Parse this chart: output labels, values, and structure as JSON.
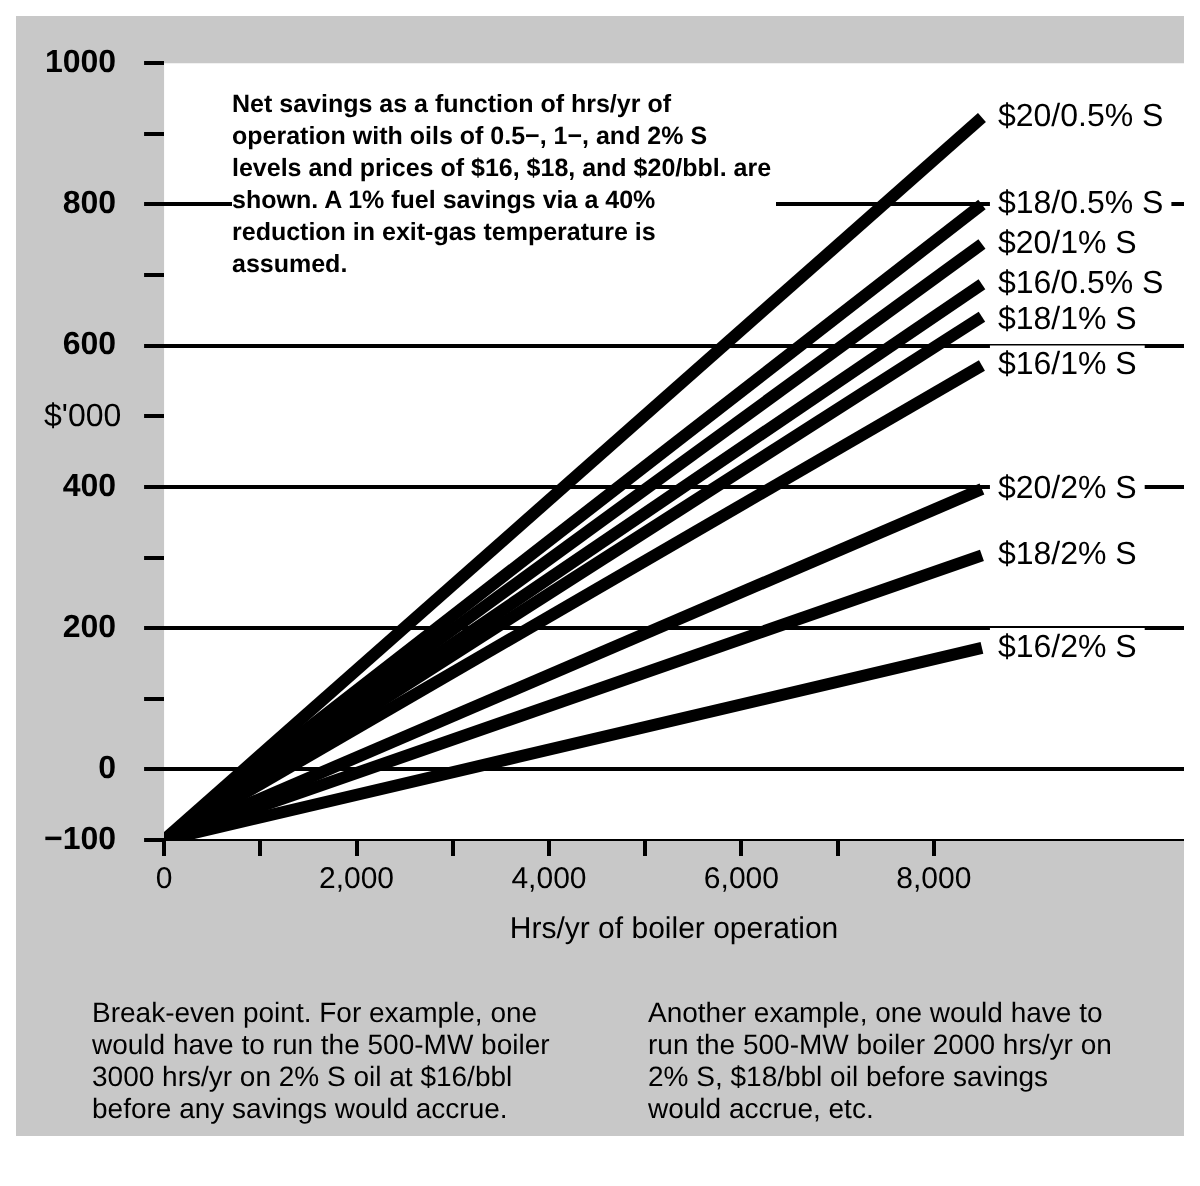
{
  "chart_data": {
    "type": "line",
    "ylabel": "$'000",
    "xlabel": "Hrs/yr of boiler operation",
    "x": [
      0,
      8500
    ],
    "series": [
      {
        "name": "$20/0.5% S",
        "color": "#000000",
        "values": [
          -100,
          923
        ]
      },
      {
        "name": "$18/0.5% S",
        "color": "#000000",
        "values": [
          -100,
          800
        ]
      },
      {
        "name": "$20/1% S",
        "color": "#000000",
        "values": [
          -100,
          744
        ]
      },
      {
        "name": "$16/0.5% S",
        "color": "#000000",
        "values": [
          -100,
          687
        ]
      },
      {
        "name": "$18/1% S",
        "color": "#000000",
        "values": [
          -100,
          641
        ]
      },
      {
        "name": "$16/1% S",
        "color": "#000000",
        "values": [
          -100,
          572
        ]
      },
      {
        "name": "$20/2% S",
        "color": "#000000",
        "values": [
          -100,
          397
        ]
      },
      {
        "name": "$18/2% S",
        "color": "#000000",
        "values": [
          -100,
          303
        ]
      },
      {
        "name": "$16/2% S",
        "color": "#000000",
        "values": [
          -100,
          172
        ]
      }
    ],
    "xlim": [
      0,
      10600
    ],
    "xticks": [
      0,
      {
        "value": 1000,
        "label": null
      },
      {
        "value": 2000,
        "label": "2,000"
      },
      {
        "value": 3000,
        "label": null
      },
      {
        "value": 4000,
        "label": "4,000"
      },
      {
        "value": 5000,
        "label": null
      },
      {
        "value": 6000,
        "label": "6,000"
      },
      {
        "value": 7000,
        "label": null
      },
      {
        "value": 8000,
        "label": "8,000"
      }
    ],
    "ylim": [
      -100,
      1000
    ],
    "yticks": [
      {
        "value": -100,
        "label": "−100"
      },
      0,
      {
        "value": 100,
        "label": null
      },
      200,
      {
        "value": 300,
        "label": null
      },
      400,
      {
        "value": 500,
        "label": null
      },
      600,
      {
        "value": 700,
        "label": null
      },
      800,
      {
        "value": 900,
        "label": null
      },
      1000
    ],
    "grid": "y",
    "legend": false,
    "marker": "none",
    "line_style": "solid",
    "annotations": [
      "Net savings as a function of hrs/yr of operation with oils of 0.5−, 1−, and 2% S levels and prices of $16, $18, and $20/bbl. are shown. A 1% fuel savings via a 40% reduction in exit-gas temperature is assumed.",
      "Break-even point. For example, one would have to run the 500-MW boiler 3000 hrs/yr on 2% S oil at $16/bbl before any savings would accrue. Another example, one would have to run the 500-MW boiler 2000 hrs/yr on 2% S, $18/bbl oil before savings would accrue, etc."
    ]
  }
}
